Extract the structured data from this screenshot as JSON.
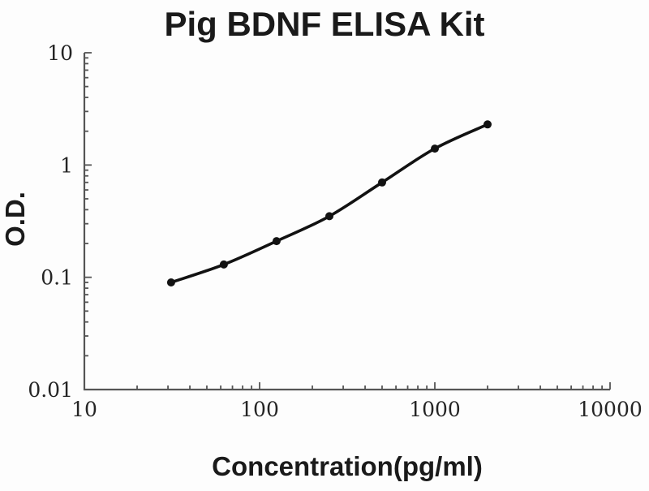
{
  "chart_data": {
    "type": "line",
    "title": "Pig BDNF ELISA Kit",
    "xlabel": "Concentration(pg/ml)",
    "ylabel": "O.D.",
    "x_scale": "log",
    "y_scale": "log",
    "xlim": [
      10,
      10000
    ],
    "ylim": [
      0.01,
      10
    ],
    "grid": false,
    "legend": "none",
    "x_ticks": [
      {
        "value": 10,
        "label": "10"
      },
      {
        "value": 100,
        "label": "100"
      },
      {
        "value": 1000,
        "label": "1000"
      },
      {
        "value": 10000,
        "label": "10000"
      }
    ],
    "y_ticks": [
      {
        "value": 10,
        "label": "10"
      },
      {
        "value": 1,
        "label": "1"
      },
      {
        "value": 0.1,
        "label": "0.1"
      },
      {
        "value": 0.01,
        "label": "0.01"
      }
    ],
    "series": [
      {
        "name": "standard-curve",
        "marker": "filled-circle",
        "x": [
          31.25,
          62.5,
          125,
          250,
          500,
          1000,
          2000
        ],
        "y": [
          0.09,
          0.13,
          0.21,
          0.35,
          0.7,
          1.4,
          2.3
        ]
      }
    ],
    "colors": {
      "line": "#121212",
      "marker": "#121212",
      "axis": "#555555",
      "text": "#1a1a1a",
      "background": "#fdfdfd"
    }
  }
}
